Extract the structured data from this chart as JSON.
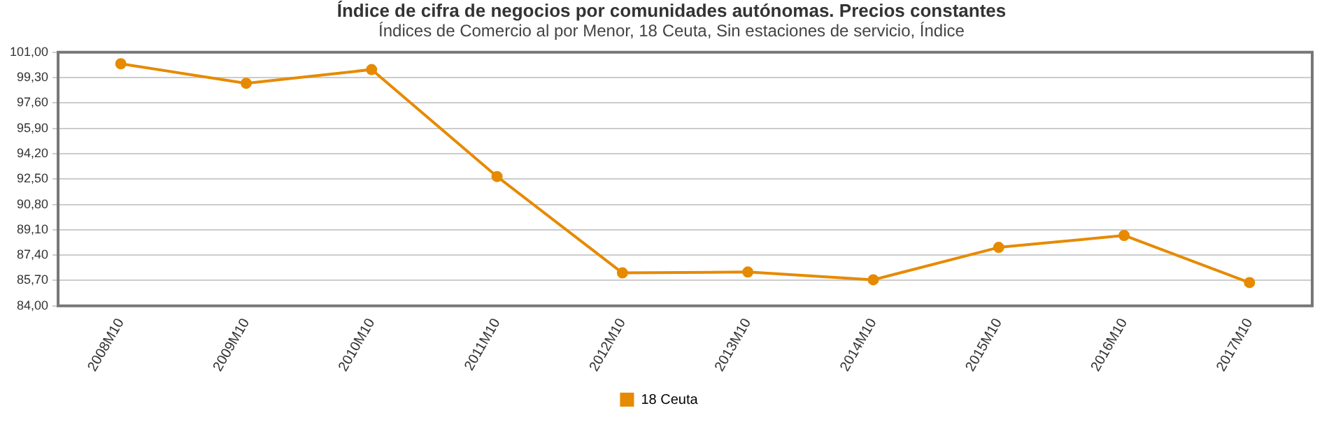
{
  "chart_data": {
    "type": "line",
    "title": "Índice de cifra de negocios  por comunidades autónomas. Precios constantes",
    "subtitle": "Índices de Comercio al por Menor, 18 Ceuta, Sin estaciones de servicio, Índice",
    "categories": [
      "2008M10",
      "2009M10",
      "2010M10",
      "2011M10",
      "2012M10",
      "2013M10",
      "2014M10",
      "2015M10",
      "2016M10",
      "2017M10"
    ],
    "series": [
      {
        "name": "18 Ceuta",
        "color": "#e68a00",
        "values": [
          100.23,
          98.92,
          99.84,
          92.67,
          86.21,
          86.27,
          85.75,
          87.92,
          88.72,
          85.56
        ]
      }
    ],
    "ylim": [
      84,
      101
    ],
    "yticks": [
      {
        "value": 84,
        "label": "84,00"
      },
      {
        "value": 85.7,
        "label": "85,70"
      },
      {
        "value": 87.4,
        "label": "87,40"
      },
      {
        "value": 89.1,
        "label": "89,10"
      },
      {
        "value": 90.8,
        "label": "90,80"
      },
      {
        "value": 92.5,
        "label": "92,50"
      },
      {
        "value": 94.2,
        "label": "94,20"
      },
      {
        "value": 95.9,
        "label": "95,90"
      },
      {
        "value": 97.6,
        "label": "97,60"
      },
      {
        "value": 99.3,
        "label": "99,30"
      },
      {
        "value": 101,
        "label": "101,00"
      }
    ],
    "grid": "y",
    "legend": "bottom",
    "marker": "circle",
    "line_style": "solid"
  }
}
